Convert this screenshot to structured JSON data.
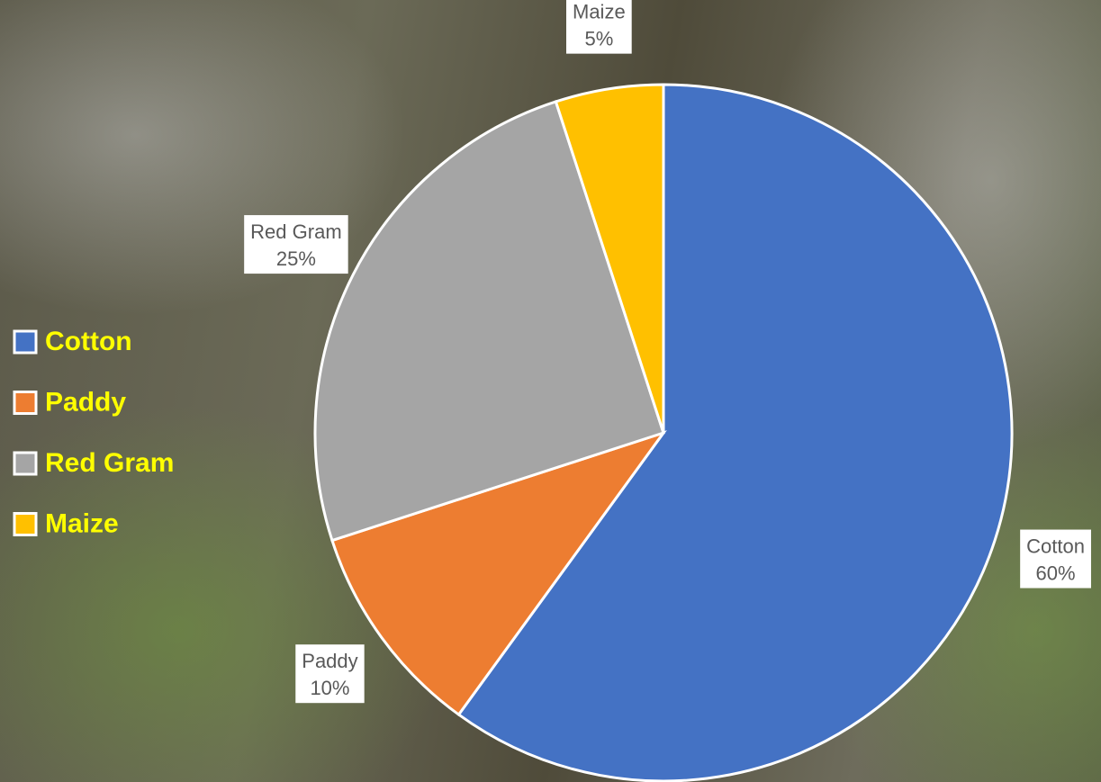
{
  "chart_data": {
    "type": "pie",
    "categories": [
      "Cotton",
      "Paddy",
      "Red Gram",
      "Maize"
    ],
    "values": [
      60,
      10,
      25,
      5
    ],
    "value_labels": [
      "60%",
      "10%",
      "25%",
      "5%"
    ],
    "colors": [
      "#4472c4",
      "#ed7d31",
      "#a5a5a5",
      "#ffc000"
    ],
    "legend": "left"
  }
}
